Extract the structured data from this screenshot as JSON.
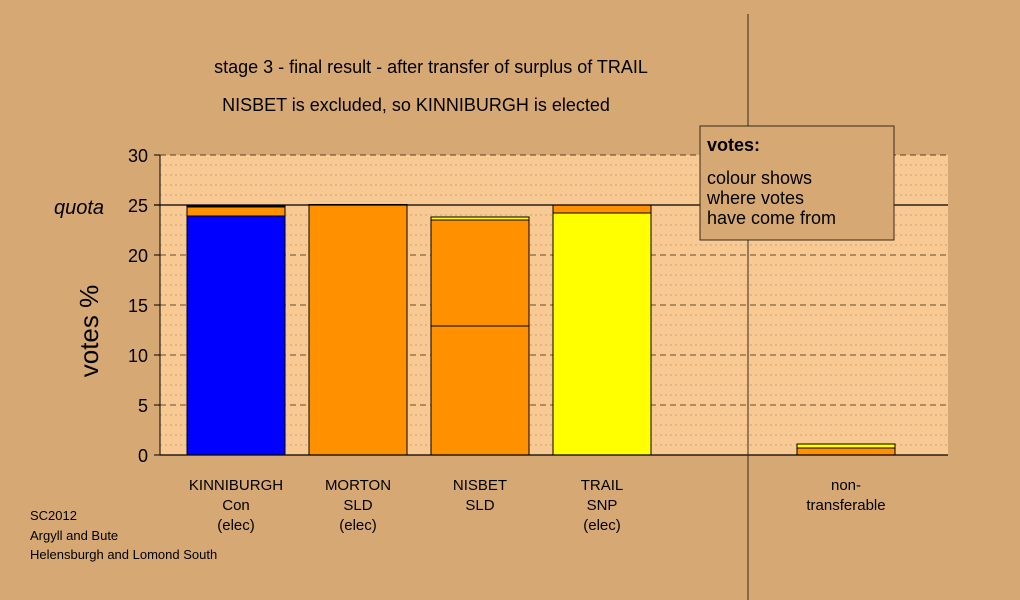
{
  "page": {
    "background": "#d6a873",
    "plot_background": "#f8c993",
    "grid_color": "#5a3f25"
  },
  "chart_data": {
    "type": "bar",
    "stacked": true,
    "title": "stage 3 - final result - after transfer of surplus of TRAIL",
    "subtitle": "NISBET is excluded, so KINNIBURGH is elected",
    "ylabel": "votes %",
    "ylim": [
      0,
      30
    ],
    "yticks": [
      "0",
      "5",
      "10",
      "15",
      "20",
      "25",
      "30"
    ],
    "quota": {
      "label": "quota",
      "value": 25
    },
    "grid": true,
    "categories": [
      {
        "lines": [
          "KINNIBURGH",
          "Con",
          "(elec)"
        ],
        "segments": [
          {
            "from": "Con",
            "value": 23.9,
            "color": "#0000ff"
          },
          {
            "from": "SLD",
            "value": 0.9,
            "color": "#ff9000"
          },
          {
            "from": "SNP",
            "value": 0.1,
            "color": "#ffff00"
          }
        ]
      },
      {
        "lines": [
          "MORTON",
          "SLD",
          "(elec)"
        ],
        "segments": [
          {
            "from": "SLD",
            "value": 25.0,
            "color": "#ff9000"
          },
          {
            "from": "SNP",
            "value": 0.05,
            "color": "#ffff00"
          }
        ]
      },
      {
        "lines": [
          "NISBET",
          "SLD"
        ],
        "segments": [
          {
            "from": "SLD",
            "value": 12.9,
            "color": "#ff9000"
          },
          {
            "from": "SLD",
            "value": 10.6,
            "color": "#ff9000"
          },
          {
            "from": "SNP",
            "value": 0.3,
            "color": "#ffff00"
          }
        ]
      },
      {
        "lines": [
          "TRAIL",
          "SNP",
          "(elec)"
        ],
        "segments": [
          {
            "from": "SNP",
            "value": 24.2,
            "color": "#ffff00"
          },
          {
            "from": "SLD",
            "value": 0.8,
            "color": "#ff9000"
          }
        ]
      },
      {
        "lines": [
          "non-",
          "transferable"
        ],
        "segments": [
          {
            "from": "SLD",
            "value": 0.7,
            "color": "#ff9000"
          },
          {
            "from": "SNP",
            "value": 0.4,
            "color": "#ffff00"
          }
        ]
      }
    ],
    "legend": {
      "placement": "top-right",
      "title": "votes:",
      "lines": [
        "colour shows",
        "where votes",
        "have come from"
      ]
    }
  },
  "footer": {
    "lines": [
      "SC2012",
      "Argyll and Bute",
      "Helensburgh and Lomond South"
    ]
  }
}
